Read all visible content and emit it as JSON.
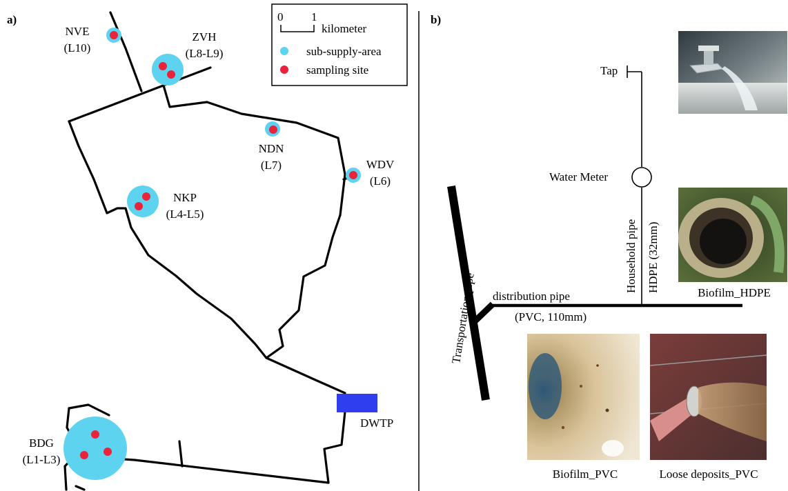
{
  "panel_a": {
    "tag": "a)",
    "legend": {
      "scale_zero": "0",
      "scale_one": "1",
      "scale_unit": "kilometer",
      "sub_supply": "sub-supply-area",
      "sampling": "sampling site"
    },
    "areas": [
      {
        "code": "NVE",
        "range": "(L10)"
      },
      {
        "code": "ZVH",
        "range": "(L8-L9)"
      },
      {
        "code": "NDN",
        "range": "(L7)"
      },
      {
        "code": "WDV",
        "range": "(L6)"
      },
      {
        "code": "NKP",
        "range": "(L4-L5)"
      },
      {
        "code": "BDG",
        "range": "(L1-L3)"
      }
    ],
    "plant": "DWTP"
  },
  "panel_b": {
    "tag": "b)",
    "tap": "Tap",
    "water_meter": "Water Meter",
    "household_pipe": "Household pipe",
    "household_spec": "HDPE (32mm)",
    "transport_pipe": "Transportation pipe",
    "distribution_pipe": "distribution pipe",
    "distribution_spec": "(PVC, 110mm)",
    "photos": {
      "hdpe": "Biofilm_HDPE",
      "pvc": "Biofilm_PVC",
      "loose": "Loose deposits_PVC"
    }
  },
  "colors": {
    "sub_supply_area": "#5ed3f0",
    "sampling_site": "#e8243c",
    "dwtp": "#2f3ff0",
    "pipe": "#000000"
  }
}
